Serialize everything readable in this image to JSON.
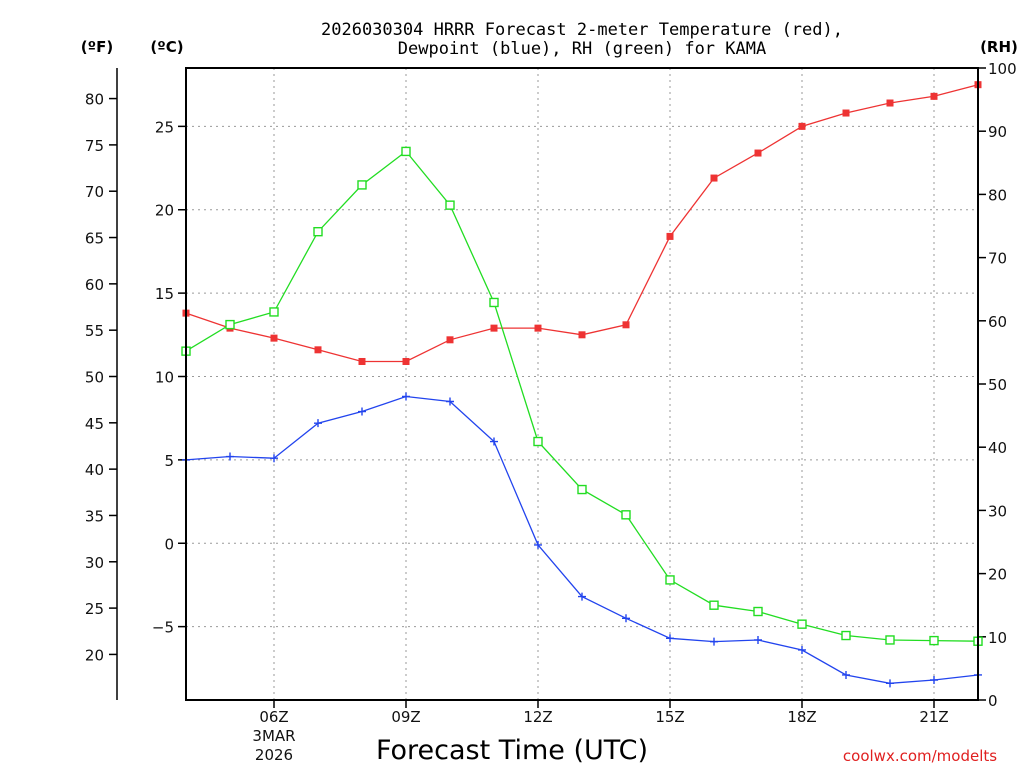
{
  "chart_data": {
    "type": "line",
    "title_lines": [
      "2026030304 HRRR Forecast 2-meter Temperature (red),",
      "Dewpoint (blue), RH (green) for KAMA"
    ],
    "xlabel": "Forecast Time (UTC)",
    "x_hours": [
      4,
      5,
      6,
      7,
      8,
      9,
      10,
      11,
      12,
      13,
      14,
      15,
      16,
      17,
      18,
      19,
      20,
      21,
      22
    ],
    "x_ticks": [
      {
        "hour": 6,
        "label": "06Z",
        "date_line1": "3MAR",
        "date_line2": "2026"
      },
      {
        "hour": 9,
        "label": "09Z"
      },
      {
        "hour": 12,
        "label": "12Z"
      },
      {
        "hour": 15,
        "label": "15Z"
      },
      {
        "hour": 18,
        "label": "18Z"
      },
      {
        "hour": 21,
        "label": "21Z"
      }
    ],
    "x_range": [
      4,
      22
    ],
    "axes": {
      "celsius": {
        "unit_label": "(ºC)",
        "range": [
          -9.4,
          28.5
        ],
        "ticks": [
          25,
          20,
          15,
          10,
          5,
          0,
          -5
        ],
        "tick_labels": [
          "25",
          "20",
          "15",
          "10",
          "5",
          "0",
          "−5"
        ]
      },
      "fahrenheit": {
        "unit_label": "(ºF)",
        "ticks": [
          80,
          75,
          70,
          65,
          60,
          55,
          50,
          45,
          40,
          35,
          30,
          25,
          20
        ],
        "tick_labels": [
          "80",
          "75",
          "70",
          "65",
          "60",
          "55",
          "50",
          "45",
          "40",
          "35",
          "30",
          "25",
          "20"
        ]
      },
      "rh": {
        "unit_label": "(RH)",
        "range": [
          0,
          100
        ],
        "ticks": [
          100,
          90,
          80,
          70,
          60,
          50,
          40,
          30,
          20,
          10,
          0
        ],
        "tick_labels": [
          "100",
          "90",
          "80",
          "70",
          "60",
          "50",
          "40",
          "30",
          "20",
          "10",
          "0"
        ]
      }
    },
    "grid": true,
    "series": [
      {
        "name": "Temperature",
        "color": "#ee3333",
        "marker": "filled-square",
        "axis": "celsius",
        "values": [
          13.8,
          12.9,
          12.3,
          11.6,
          10.9,
          10.9,
          12.2,
          12.9,
          12.9,
          12.5,
          13.1,
          18.4,
          21.9,
          23.4,
          25.0,
          25.8,
          26.4,
          26.8,
          27.5
        ]
      },
      {
        "name": "Dewpoint",
        "color": "#2244ee",
        "marker": "plus",
        "axis": "celsius",
        "values": [
          5.0,
          5.2,
          5.1,
          7.2,
          7.9,
          8.8,
          8.5,
          6.1,
          -0.1,
          -3.2,
          -4.5,
          -5.7,
          -5.9,
          -5.8,
          -6.4,
          -7.9,
          -8.4,
          -8.2,
          -7.9
        ]
      },
      {
        "name": "RH",
        "color": "#22dd22",
        "marker": "open-square",
        "axis": "rh",
        "values": [
          55.2,
          59.4,
          61.4,
          74.1,
          81.5,
          86.8,
          78.3,
          62.9,
          40.9,
          33.3,
          29.3,
          19.0,
          15.0,
          14.0,
          12.0,
          10.2,
          9.5,
          9.4,
          9.3
        ]
      }
    ]
  },
  "watermark": "coolwx.com/modelts"
}
